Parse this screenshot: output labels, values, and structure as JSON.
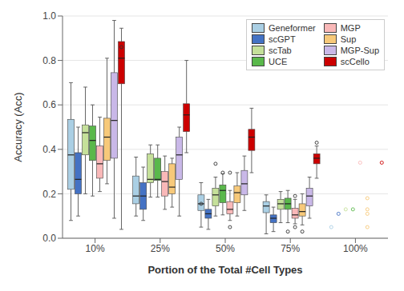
{
  "chart_data": {
    "type": "box",
    "categories": [
      "10%",
      "25%",
      "50%",
      "75%",
      "100%"
    ],
    "xlabel": "Portion of the Total #Cell Types",
    "ylabel": "Accuracy (Acc)",
    "ylim": [
      0.0,
      1.0
    ],
    "yticks": [
      {
        "value": 0.0,
        "label": "0.0"
      },
      0.2,
      0.4,
      0.6,
      0.8,
      {
        "value": 1.0,
        "label": "1.0"
      }
    ],
    "grid": true,
    "legend": "upper right",
    "series": [
      {
        "name": "Geneformer",
        "color": "#aacfe4",
        "values": [
          {
            "whislo": 0.08,
            "q1": 0.22,
            "med": 0.375,
            "q3": 0.535,
            "whishi": 0.7,
            "fliers": []
          },
          {
            "whislo": 0.1,
            "q1": 0.155,
            "med": 0.19,
            "q3": 0.28,
            "whishi": 0.365,
            "fliers": []
          },
          {
            "whislo": 0.05,
            "q1": 0.125,
            "med": 0.155,
            "q3": 0.195,
            "whishi": 0.25,
            "fliers": [
              0.155
            ]
          },
          {
            "whislo": 0.02,
            "q1": 0.115,
            "med": 0.145,
            "q3": 0.165,
            "whishi": 0.195,
            "fliers": []
          },
          {
            "whislo": null,
            "q1": null,
            "med": null,
            "q3": null,
            "whishi": null,
            "fliers": [
              0.05
            ]
          }
        ]
      },
      {
        "name": "scGPT",
        "color": "#4472c4",
        "values": [
          {
            "whislo": 0.1,
            "q1": 0.2,
            "med": 0.265,
            "q3": 0.385,
            "whishi": 0.5,
            "fliers": []
          },
          {
            "whislo": 0.08,
            "q1": 0.13,
            "med": 0.19,
            "q3": 0.25,
            "whishi": 0.32,
            "fliers": []
          },
          {
            "whislo": 0.04,
            "q1": 0.09,
            "med": 0.11,
            "q3": 0.13,
            "whishi": 0.175,
            "fliers": []
          },
          {
            "whislo": 0.03,
            "q1": 0.07,
            "med": 0.09,
            "q3": 0.105,
            "whishi": 0.14,
            "fliers": []
          },
          {
            "whislo": null,
            "q1": null,
            "med": null,
            "q3": null,
            "whishi": null,
            "fliers": [
              0.11
            ]
          }
        ]
      },
      {
        "name": "scTab",
        "color": "#c5e09a",
        "values": [
          {
            "whislo": 0.2,
            "q1": 0.375,
            "med": 0.475,
            "q3": 0.51,
            "whishi": 0.68,
            "fliers": []
          },
          {
            "whislo": 0.185,
            "q1": 0.25,
            "med": 0.265,
            "q3": 0.38,
            "whishi": 0.42,
            "fliers": []
          },
          {
            "whislo": 0.1,
            "q1": 0.145,
            "med": 0.195,
            "q3": 0.225,
            "whishi": 0.275,
            "fliers": [
              0.335
            ]
          },
          {
            "whislo": 0.07,
            "q1": 0.13,
            "med": 0.155,
            "q3": 0.175,
            "whishi": 0.21,
            "fliers": []
          },
          {
            "whislo": null,
            "q1": null,
            "med": null,
            "q3": null,
            "whishi": null,
            "fliers": [
              0.13
            ]
          }
        ]
      },
      {
        "name": "UCE",
        "color": "#5ab84b",
        "values": [
          {
            "whislo": 0.19,
            "q1": 0.35,
            "med": 0.44,
            "q3": 0.505,
            "whishi": 0.6,
            "fliers": []
          },
          {
            "whislo": 0.185,
            "q1": 0.26,
            "med": 0.265,
            "q3": 0.36,
            "whishi": 0.42,
            "fliers": []
          },
          {
            "whislo": 0.105,
            "q1": 0.16,
            "med": 0.215,
            "q3": 0.24,
            "whishi": 0.29,
            "fliers": [
              0.295
            ]
          },
          {
            "whislo": 0.07,
            "q1": 0.13,
            "med": 0.155,
            "q3": 0.18,
            "whishi": 0.215,
            "fliers": [
              0.03
            ]
          },
          {
            "whislo": null,
            "q1": null,
            "med": null,
            "q3": null,
            "whishi": null,
            "fliers": [
              0.13
            ]
          }
        ]
      },
      {
        "name": "MGP",
        "color": "#f9b8b8",
        "values": [
          {
            "whislo": 0.21,
            "q1": 0.27,
            "med": 0.335,
            "q3": 0.415,
            "whishi": 0.545,
            "fliers": []
          },
          {
            "whislo": 0.13,
            "q1": 0.19,
            "med": 0.255,
            "q3": 0.3,
            "whishi": 0.37,
            "fliers": []
          },
          {
            "whislo": 0.08,
            "q1": 0.11,
            "med": 0.13,
            "q3": 0.165,
            "whishi": 0.215,
            "fliers": [
              0.295,
              0.05
            ]
          },
          {
            "whislo": 0.065,
            "q1": 0.09,
            "med": 0.105,
            "q3": 0.135,
            "whishi": 0.175,
            "fliers": [
              0.19,
              0.05
            ]
          },
          {
            "whislo": null,
            "q1": null,
            "med": null,
            "q3": null,
            "whishi": null,
            "fliers": [
              0.34
            ]
          }
        ]
      },
      {
        "name": "Sup",
        "color": "#f7c97a",
        "values": [
          {
            "whislo": 0.245,
            "q1": 0.35,
            "med": 0.455,
            "q3": 0.54,
            "whishi": 0.81,
            "fliers": []
          },
          {
            "whislo": 0.14,
            "q1": 0.2,
            "med": 0.23,
            "q3": 0.335,
            "whishi": 0.36,
            "fliers": []
          },
          {
            "whislo": 0.1,
            "q1": 0.16,
            "med": 0.205,
            "q3": 0.235,
            "whishi": 0.295,
            "fliers": []
          },
          {
            "whislo": 0.06,
            "q1": 0.1,
            "med": 0.12,
            "q3": 0.155,
            "whishi": 0.2,
            "fliers": [
              0.03
            ]
          },
          {
            "whislo": null,
            "q1": null,
            "med": null,
            "q3": null,
            "whishi": null,
            "fliers": [
              0.05,
              0.11,
              0.13,
              0.18
            ]
          }
        ]
      },
      {
        "name": "MGP-Sup",
        "color": "#c9b8e8",
        "values": [
          {
            "whislo": 0.09,
            "q1": 0.36,
            "med": 0.53,
            "q3": 0.745,
            "whishi": 0.98,
            "fliers": []
          },
          {
            "whislo": 0.1,
            "q1": 0.265,
            "med": 0.375,
            "q3": 0.455,
            "whishi": 0.5,
            "fliers": []
          },
          {
            "whislo": 0.125,
            "q1": 0.195,
            "med": 0.245,
            "q3": 0.305,
            "whishi": 0.37,
            "fliers": []
          },
          {
            "whislo": 0.09,
            "q1": 0.145,
            "med": 0.19,
            "q3": 0.225,
            "whishi": 0.275,
            "fliers": []
          },
          {
            "whislo": null,
            "q1": null,
            "med": null,
            "q3": null,
            "whishi": null,
            "fliers": []
          }
        ]
      },
      {
        "name": "scCello",
        "color": "#cc0000",
        "values": [
          {
            "whislo": 0.04,
            "q1": 0.695,
            "med": 0.81,
            "q3": 0.885,
            "whishi": 0.945,
            "fliers": [
              0.86
            ]
          },
          {
            "whislo": 0.385,
            "q1": 0.48,
            "med": 0.555,
            "q3": 0.605,
            "whishi": 0.8,
            "fliers": []
          },
          {
            "whislo": 0.295,
            "q1": 0.395,
            "med": 0.455,
            "q3": 0.49,
            "whishi": 0.585,
            "fliers": []
          },
          {
            "whislo": 0.27,
            "q1": 0.335,
            "med": 0.36,
            "q3": 0.38,
            "whishi": 0.415,
            "fliers": [
              0.43
            ]
          },
          {
            "whislo": null,
            "q1": null,
            "med": null,
            "q3": null,
            "whishi": null,
            "fliers": [
              0.34
            ]
          }
        ]
      }
    ]
  }
}
